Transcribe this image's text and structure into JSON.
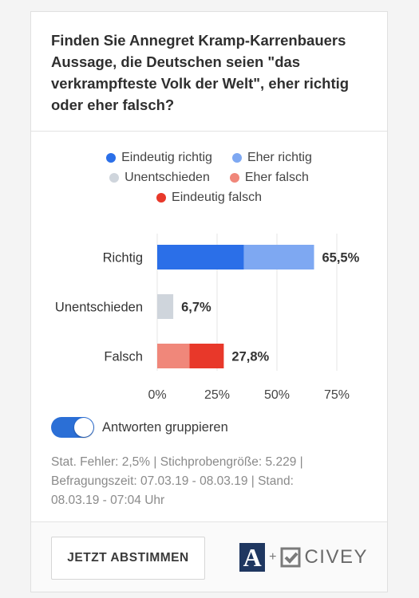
{
  "question": "Finden Sie Annegret Kramp-Karrenbauers Aussage, die Deutschen seien \"das verkrampfteste Volk der Welt\", eher richtig oder eher falsch?",
  "legend": [
    {
      "label": "Eindeutig richtig",
      "color": "#2b6fe8"
    },
    {
      "label": "Eher richtig",
      "color": "#7ea8f2"
    },
    {
      "label": "Unentschieden",
      "color": "#cfd5dc"
    },
    {
      "label": "Eher falsch",
      "color": "#f0877a"
    },
    {
      "label": "Eindeutig falsch",
      "color": "#e8382a"
    }
  ],
  "chart_data": {
    "type": "bar",
    "orientation": "horizontal",
    "stacked": true,
    "categories": [
      "Richtig",
      "Unentschieden",
      "Falsch"
    ],
    "series": [
      {
        "name": "Eindeutig richtig",
        "values": [
          36.2,
          0,
          0
        ]
      },
      {
        "name": "Eher richtig",
        "values": [
          29.3,
          0,
          0
        ]
      },
      {
        "name": "Unentschieden",
        "values": [
          0,
          6.7,
          0
        ]
      },
      {
        "name": "Eher falsch",
        "values": [
          0,
          0,
          13.5
        ]
      },
      {
        "name": "Eindeutig falsch",
        "values": [
          0,
          0,
          14.3
        ]
      }
    ],
    "totals": [
      65.5,
      6.7,
      27.8
    ],
    "total_labels": [
      "65,5%",
      "6,7%",
      "27,8%"
    ],
    "xticks": [
      0,
      25,
      50,
      75
    ],
    "xtick_labels": [
      "0%",
      "25%",
      "50%",
      "75%"
    ],
    "xlim": [
      0,
      75
    ],
    "grid": true,
    "legend_position": "top"
  },
  "toggle": {
    "label": "Antworten gruppieren",
    "on": true
  },
  "stats": "Stat. Fehler: 2,5% | Stichprobengröße: 5.229 | Befragungszeit: 07.03.19 - 08.03.19 | Stand: 08.03.19 - 07:04 Uhr",
  "footer": {
    "vote_button": "JETZT ABSTIMMEN",
    "brand_a": "A",
    "brand_plus": "+",
    "brand_name": "CIVEY"
  }
}
